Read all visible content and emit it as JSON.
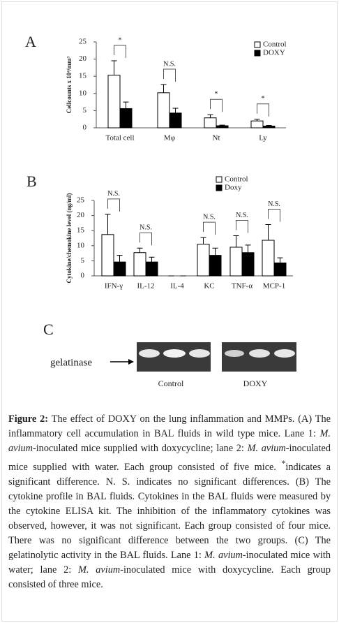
{
  "chart_data": [
    {
      "type": "bar",
      "panel": "A",
      "y_label": "Cellcounts x 10⁴/mm³",
      "categories": [
        "Total cell",
        "Mφ",
        "Nt",
        "Ly"
      ],
      "series": [
        {
          "name": "Control",
          "color": "#ffffff",
          "values": [
            15.3,
            10.2,
            2.9,
            2.0
          ],
          "errors": [
            4.2,
            2.4,
            0.9,
            0.5
          ]
        },
        {
          "name": "DOXY",
          "color": "#000000",
          "values": [
            5.6,
            4.3,
            0.6,
            0.5
          ],
          "errors": [
            1.9,
            1.4,
            0.2,
            0.2
          ]
        }
      ],
      "significance": [
        "*",
        "N.S.",
        "*",
        "*"
      ],
      "ylim": [
        0,
        25
      ],
      "yticks": [
        0,
        5,
        10,
        15,
        20,
        25
      ],
      "grid": false,
      "legend": "top-right"
    },
    {
      "type": "bar",
      "panel": "B",
      "y_label": "Cytokine/chemokine level (ng/ml)",
      "categories": [
        "IFN-γ",
        "IL-12",
        "IL-4",
        "KC",
        "TNF-α",
        "MCP-1"
      ],
      "series": [
        {
          "name": "Control",
          "color": "#ffffff",
          "values": [
            13.7,
            7.7,
            0,
            10.5,
            9.5,
            11.8
          ],
          "errors": [
            6.7,
            1.5,
            0,
            2.2,
            3.8,
            5.2
          ]
        },
        {
          "name": "Doxy",
          "color": "#000000",
          "values": [
            4.6,
            4.6,
            0,
            6.8,
            7.7,
            4.3
          ],
          "errors": [
            2.2,
            1.6,
            0,
            2.4,
            2.5,
            1.7
          ]
        }
      ],
      "significance": [
        "N.S.",
        "N.S.",
        null,
        "N.S.",
        "N.S.",
        "N.S."
      ],
      "ylim": [
        0,
        25
      ],
      "yticks": [
        0,
        5,
        10,
        15,
        20,
        25
      ],
      "grid": false,
      "legend": "top-right"
    }
  ],
  "panel_c": {
    "panel": "C",
    "marker": "gelatinase",
    "lanes": [
      "Control",
      "DOXY"
    ]
  },
  "caption": {
    "label": "Figure 2:",
    "segments": [
      {
        "text": " The effect of DOXY on the lung inflammation and MMPs. (A) The inflammatory cell accumulation in BAL fluids in wild type mice. Lane 1: "
      },
      {
        "text": "M. avium",
        "italic": true
      },
      {
        "text": "-inoculated mice supplied with doxycycline; lane 2: "
      },
      {
        "text": "M. avium",
        "italic": true
      },
      {
        "text": "-inoculated mice supplied with water. Each group consisted of five mice. "
      },
      {
        "text": "*",
        "sup": true
      },
      {
        "text": "indicates a significant difference. N. S. indicates no significant differences. (B) The cytokine profile in BAL fluids. Cytokines in the BAL fluids were measured by the cytokine ELISA kit. The inhibition of the inflammatory cytokines was observed, however, it was not significant. Each group consisted of four mice. There was no significant difference between the two groups. (C) The gelatinolytic activity in the BAL fluids. Lane 1: "
      },
      {
        "text": "M. avium",
        "italic": true
      },
      {
        "text": "-inoculated mice with water; lane 2: "
      },
      {
        "text": "M. avium",
        "italic": true
      },
      {
        "text": "-inoculated mice with doxycycline. Each group consisted of three mice."
      }
    ]
  }
}
